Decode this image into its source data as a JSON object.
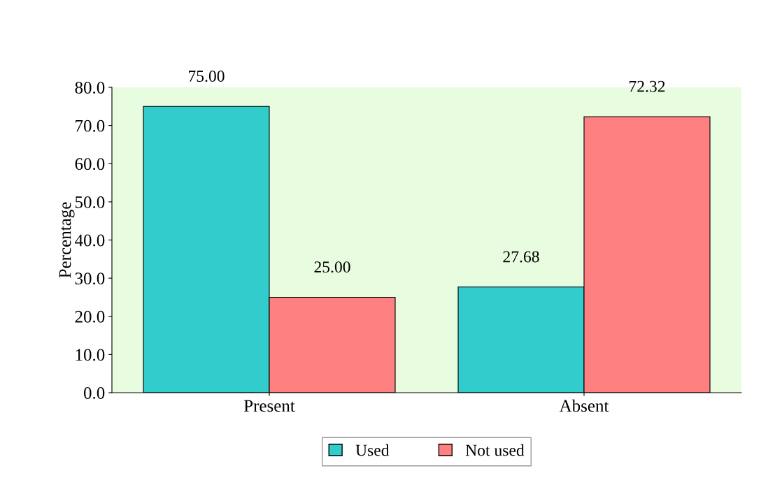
{
  "chart_data": {
    "type": "bar",
    "ylabel": "Percentage",
    "categories": [
      "Present",
      "Absent"
    ],
    "series": [
      {
        "name": "Used",
        "color": "#33cccc",
        "values": [
          75.0,
          27.68
        ],
        "value_labels": [
          "75.00",
          "27.68"
        ]
      },
      {
        "name": "Not used",
        "color": "#ff8080",
        "values": [
          25.0,
          72.32
        ],
        "value_labels": [
          "25.00",
          "72.32"
        ]
      }
    ],
    "ylim": [
      0,
      80
    ],
    "yticks": [
      {
        "value": 0,
        "label": "0.0"
      },
      {
        "value": 10,
        "label": "10.0"
      },
      {
        "value": 20,
        "label": "20.0"
      },
      {
        "value": 30,
        "label": "30.0"
      },
      {
        "value": 40,
        "label": "40.0"
      },
      {
        "value": 50,
        "label": "50.0"
      },
      {
        "value": 60,
        "label": "60.0"
      },
      {
        "value": 70,
        "label": "70.0"
      },
      {
        "value": 80,
        "label": "80.0"
      }
    ],
    "grid": false,
    "legend": "bottom"
  }
}
